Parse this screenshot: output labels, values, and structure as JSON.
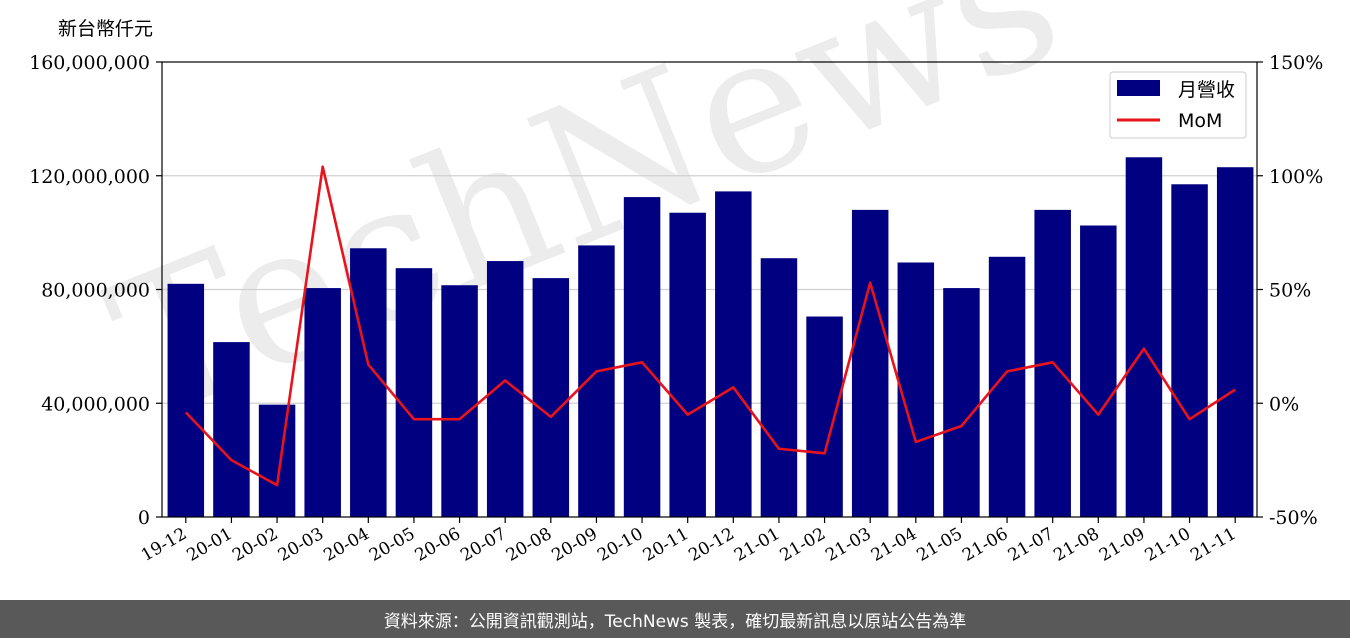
{
  "unit_label": "新台幣仟元",
  "footer_text": "資料來源：公開資訊觀測站，TechNews 製表，確切最新訊息以原站公告為準",
  "watermark": "TechNews",
  "colors": {
    "bar": "#000080",
    "line": "#e8131b",
    "grid": "#d0d0d0",
    "footer_bg": "#595959"
  },
  "chart_data": {
    "type": "bar",
    "categories": [
      "19-12",
      "20-01",
      "20-02",
      "20-03",
      "20-04",
      "20-05",
      "20-06",
      "20-07",
      "20-08",
      "20-09",
      "20-10",
      "20-11",
      "20-12",
      "21-01",
      "21-02",
      "21-03",
      "21-04",
      "21-05",
      "21-06",
      "21-07",
      "21-08",
      "21-09",
      "21-10",
      "21-11"
    ],
    "series": [
      {
        "name": "月營收",
        "type": "bar",
        "axis": "left",
        "values": [
          82000000,
          61500000,
          39500000,
          80500000,
          94500000,
          87500000,
          81500000,
          90000000,
          84000000,
          95500000,
          112500000,
          107000000,
          114500000,
          91000000,
          70500000,
          108000000,
          89500000,
          80500000,
          91500000,
          108000000,
          102500000,
          126500000,
          117000000,
          123000000
        ]
      },
      {
        "name": "MoM",
        "type": "line",
        "axis": "right",
        "values": [
          -4,
          -25,
          -36,
          104,
          17,
          -7,
          -7,
          10,
          -6,
          14,
          18,
          -5,
          7,
          -20,
          -22,
          53,
          -17,
          -10,
          14,
          18,
          -5,
          24,
          -7,
          6
        ]
      }
    ],
    "ylim": [
      0,
      160000000
    ],
    "yticks": [
      0,
      40000000,
      80000000,
      120000000,
      160000000
    ],
    "ytick_labels": [
      "0",
      "40,000,000",
      "80,000,000",
      "120,000,000",
      "160,000,000"
    ],
    "y2lim": [
      -50,
      150
    ],
    "y2ticks": [
      -50,
      0,
      50,
      100,
      150
    ],
    "y2tick_labels": [
      "-50%",
      "0%",
      "50%",
      "100%",
      "150%"
    ],
    "grid": true,
    "legend_position": "top-right"
  }
}
